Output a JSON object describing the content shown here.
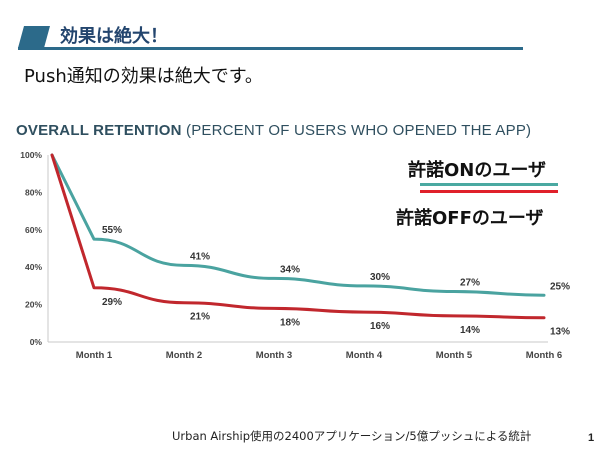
{
  "header": {
    "title": "効果は絶大！",
    "accent_color": "#2c6a8a"
  },
  "subtitle": "Push通知の効果は絶大です。",
  "chart_title": {
    "bold": "OVERALL RETENTION",
    "light": " (PERCENT OF USERS WHO OPENED THE APP)"
  },
  "legend": [
    {
      "label": "許諾ONのユーザ",
      "color": "#4aa9a1"
    },
    {
      "label": "許諾OFFのユーザ",
      "color": "#e0202a"
    }
  ],
  "chart_data": {
    "type": "line",
    "title": "OVERALL RETENTION (PERCENT OF USERS WHO OPENED THE APP)",
    "x": [
      "",
      "Month 1",
      "Month 2",
      "Month 3",
      "Month 4",
      "Month 5",
      "Month 6"
    ],
    "x_tick_labels": [
      "Month 1",
      "Month 2",
      "Month 3",
      "Month 4",
      "Month 5",
      "Month 6"
    ],
    "y_tick_labels": [
      "100%",
      "80%",
      "60%",
      "40%",
      "20%",
      "0%"
    ],
    "ylim": [
      0,
      100
    ],
    "grid": false,
    "series": [
      {
        "name": "許諾ONのユーザ",
        "color": "#4aa3a0",
        "values": [
          100,
          55,
          41,
          34,
          30,
          27,
          25
        ],
        "labels": [
          "",
          "55%",
          "41%",
          "34%",
          "30%",
          "27%",
          "25%"
        ]
      },
      {
        "name": "許諾OFFのユーザ",
        "color": "#c1272d",
        "values": [
          100,
          29,
          21,
          18,
          16,
          14,
          13
        ],
        "labels": [
          "",
          "29%",
          "21%",
          "18%",
          "16%",
          "14%",
          "13%"
        ]
      }
    ]
  },
  "footnote": "Urban Airship使用の2400アプリケーション/5億プッシュによる統計",
  "page_number": "1"
}
